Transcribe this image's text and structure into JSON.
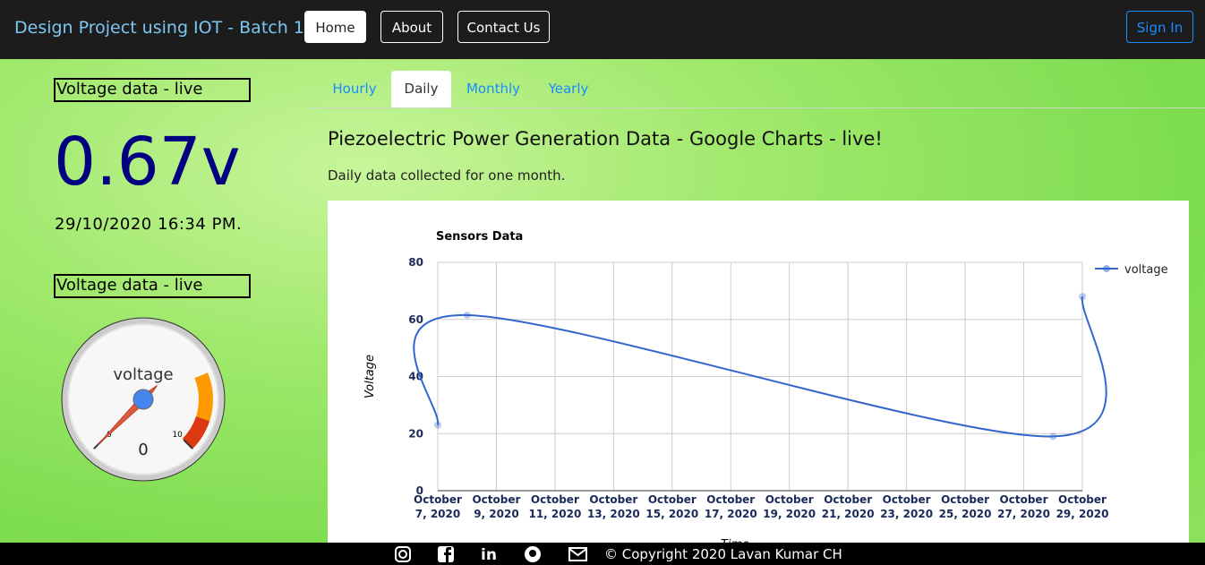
{
  "nav": {
    "brand": "Design Project using IOT - Batch 1",
    "links": [
      "Home",
      "About",
      "Contact Us"
    ],
    "sign_in": "Sign In"
  },
  "sidebar": {
    "heading_1": "Voltage data - live",
    "reading": "0.67v",
    "timestamp": "29/10/2020 16:34 PM.",
    "heading_2": "Voltage data - live"
  },
  "tabs": [
    "Hourly",
    "Daily",
    "Monthly",
    "Yearly"
  ],
  "section": {
    "title": "Piezoelectric Power Generation Data - Google Charts - live!",
    "subtitle": "Daily data collected for one month."
  },
  "chart_data": [
    {
      "type": "line",
      "title": "Sensors Data",
      "x_label": "Time",
      "y_label": "Voltage",
      "x": [
        "2020-10-07",
        "2020-10-08",
        "2020-10-28",
        "2020-10-29"
      ],
      "series": [
        {
          "name": "voltage",
          "color": "#3366cc",
          "values": [
            23,
            61.5,
            19,
            68
          ]
        }
      ],
      "xlim": [
        "2020-10-07",
        "2020-10-29"
      ],
      "xticks": [
        {
          "value": "2020-10-07",
          "label": "October 7, 2020"
        },
        {
          "value": "2020-10-09",
          "label": "October 9, 2020"
        },
        {
          "value": "2020-10-11",
          "label": "October 11, 2020"
        },
        {
          "value": "2020-10-13",
          "label": "October 13, 2020"
        },
        {
          "value": "2020-10-15",
          "label": "October 15, 2020"
        },
        {
          "value": "2020-10-17",
          "label": "October 17, 2020"
        },
        {
          "value": "2020-10-19",
          "label": "October 19, 2020"
        },
        {
          "value": "2020-10-21",
          "label": "October 21, 2020"
        },
        {
          "value": "2020-10-23",
          "label": "October 23, 2020"
        },
        {
          "value": "2020-10-25",
          "label": "October 25, 2020"
        },
        {
          "value": "2020-10-27",
          "label": "October 27, 2020"
        },
        {
          "value": "2020-10-29",
          "label": "October 29, 2020"
        }
      ],
      "ylim": [
        0,
        80
      ],
      "yticks": [
        0,
        20,
        40,
        60,
        80
      ],
      "grid": true,
      "legend": "right"
    },
    {
      "type": "gauge",
      "label": "voltage",
      "value": 0,
      "range": [
        0,
        10
      ],
      "ticks": [
        0,
        10
      ],
      "bands": [
        {
          "from": 7.5,
          "to": 9,
          "color": "#ff9900"
        },
        {
          "from": 9,
          "to": 10,
          "color": "#dc3912"
        }
      ]
    }
  ],
  "footer": {
    "copyright": "© Copyright 2020 Lavan Kumar CH"
  }
}
